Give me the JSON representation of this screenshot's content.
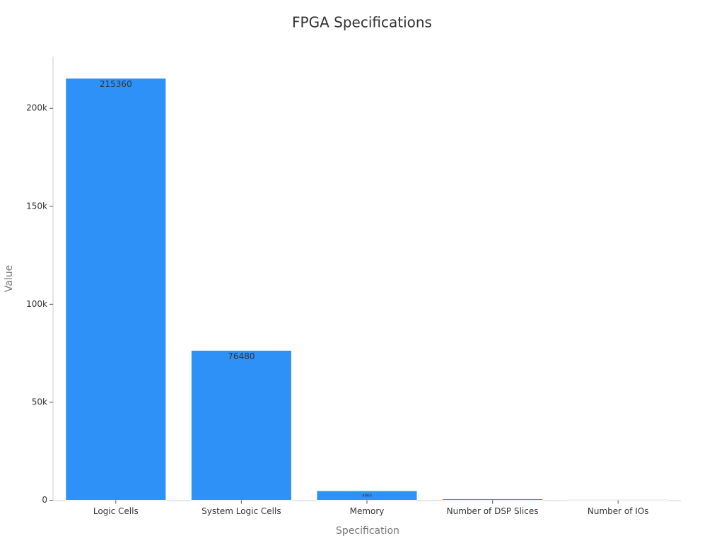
{
  "chart_data": {
    "type": "bar",
    "title": "FPGA Specifications",
    "x_label": "Specification",
    "y_label": "Value",
    "categories": [
      "Logic Cells",
      "System Logic Cells",
      "Memory",
      "Number of DSP Slices",
      "Number of IOs"
    ],
    "values": [
      215360,
      76480,
      4860,
      740,
      400
    ],
    "color": "#2e91f8",
    "ylim": [
      0,
      226400
    ],
    "yticks": [
      0,
      {
        "value": 50000,
        "label": "50k"
      },
      {
        "value": 100000,
        "label": "100k"
      },
      {
        "value": 150000,
        "label": "150k"
      },
      {
        "value": 200000,
        "label": "200k"
      }
    ],
    "grid": false
  }
}
